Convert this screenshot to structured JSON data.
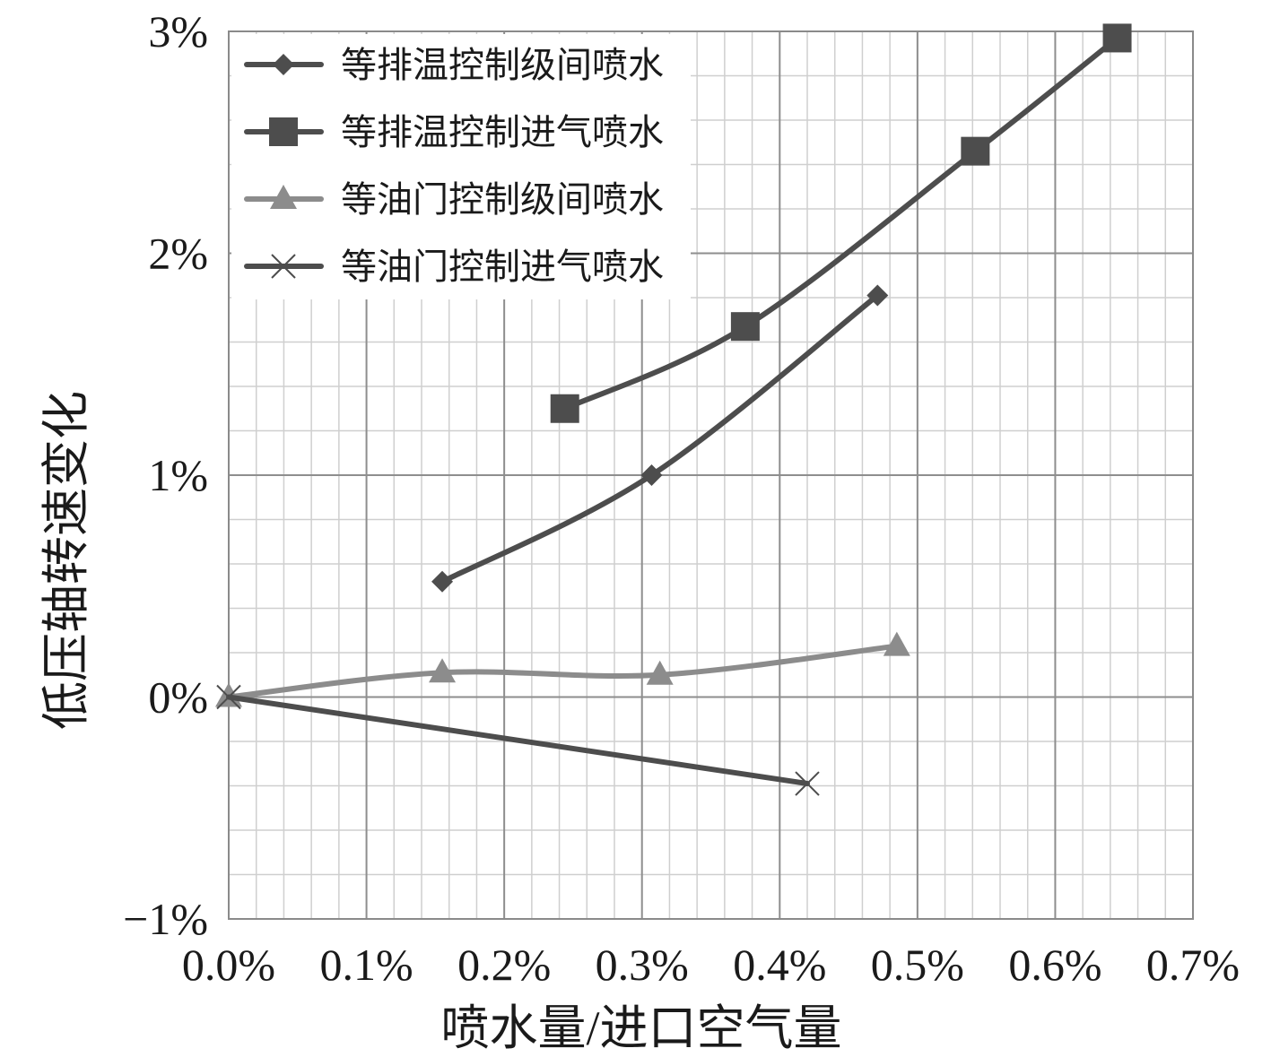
{
  "chart_data": {
    "type": "line",
    "title": "",
    "xlabel": "喷水量/进口空气量",
    "ylabel": "低压轴转速变化",
    "xlim": [
      0,
      0.7
    ],
    "ylim": [
      -1,
      3
    ],
    "x_ticks": [
      {
        "value": 0.0,
        "label": "0.0%"
      },
      {
        "value": 0.1,
        "label": "0.1%"
      },
      {
        "value": 0.2,
        "label": "0.2%"
      },
      {
        "value": 0.3,
        "label": "0.3%"
      },
      {
        "value": 0.4,
        "label": "0.4%"
      },
      {
        "value": 0.5,
        "label": "0.5%"
      },
      {
        "value": 0.6,
        "label": "0.6%"
      },
      {
        "value": 0.7,
        "label": "0.7%"
      }
    ],
    "y_ticks": [
      {
        "value": -1,
        "label": "−1%"
      },
      {
        "value": 0,
        "label": "0%"
      },
      {
        "value": 1,
        "label": "1%"
      },
      {
        "value": 2,
        "label": "2%"
      },
      {
        "value": 3,
        "label": "3%"
      }
    ],
    "grid": true,
    "legend": "top-left",
    "series": [
      {
        "name": "等排温控制级间喷水",
        "marker": "diamond",
        "color": "#4d4d4d",
        "x": [
          0.155,
          0.307,
          0.471
        ],
        "y": [
          0.52,
          1.0,
          1.81
        ]
      },
      {
        "name": "等排温控制进气喷水",
        "marker": "square",
        "color": "#4d4d4d",
        "x": [
          0.244,
          0.375,
          0.542,
          0.645
        ],
        "y": [
          1.3,
          1.67,
          2.46,
          2.97
        ]
      },
      {
        "name": "等油门控制级间喷水",
        "marker": "triangle",
        "color": "#8c8c8c",
        "x": [
          0.0,
          0.155,
          0.313,
          0.485
        ],
        "y": [
          0.0,
          0.11,
          0.1,
          0.23
        ]
      },
      {
        "name": "等油门控制进气喷水",
        "marker": "x",
        "color": "#4d4d4d",
        "x": [
          0.0,
          0.42
        ],
        "y": [
          0.0,
          -0.39
        ]
      }
    ]
  }
}
